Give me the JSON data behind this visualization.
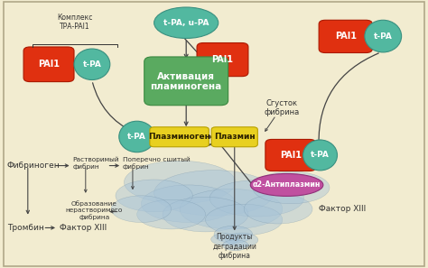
{
  "bg_color": "#f2ecd0",
  "red_color": "#e03010",
  "teal_color": "#52b8a0",
  "teal_edge": "#3a9080",
  "green_color": "#5aaa60",
  "green_edge": "#3a8840",
  "yellow_color": "#e8d020",
  "yellow_edge": "#b8a000",
  "pink_color": "#c050a0",
  "pink_edge": "#903078",
  "dark": "#333333",
  "arrow": "#444444",
  "blob_color": "#a8c4d8",
  "blob_edge": "#6888a0",
  "border": "#b0a888",
  "elements": {
    "complex_text": "Комплекс\nТРА-PAI1",
    "pai1_tl_label": "PAI1",
    "tpa_tl_label": "t-PA",
    "tpa_upa_label": "t-PA, u-PA",
    "pai1_tc_label": "PAI1",
    "act_label": "Активация\nпламиногена",
    "pai1_tr_label": "PAI1",
    "tpa_tr_label": "t-PA",
    "sgustok_label": "Сгусток\nфибрина",
    "pai1_mr_label": "PAI1",
    "tpa_mr_label": "t-PA",
    "tpa_ml_label": "t-PA",
    "plazminogen_label": "Плазминоген",
    "plazmin_label": "Плазмин",
    "antipl_label": "α2-Антиплазмин",
    "faktor_br_label": "Фактор XIII",
    "fibrinogen_label": "Фибриноген",
    "rastvorimy_label": "Растворимый\nфибрин",
    "poperechno_label": "Поперечно сшитый\nфибрин",
    "obrazovanie_label": "Образование\nнерастворимого\nфибрина",
    "trombin_label": "Тромбин",
    "faktor_bl_label": "Фактор XIII",
    "produkty_label": "Продукты\nдеградации\nфибрина"
  }
}
